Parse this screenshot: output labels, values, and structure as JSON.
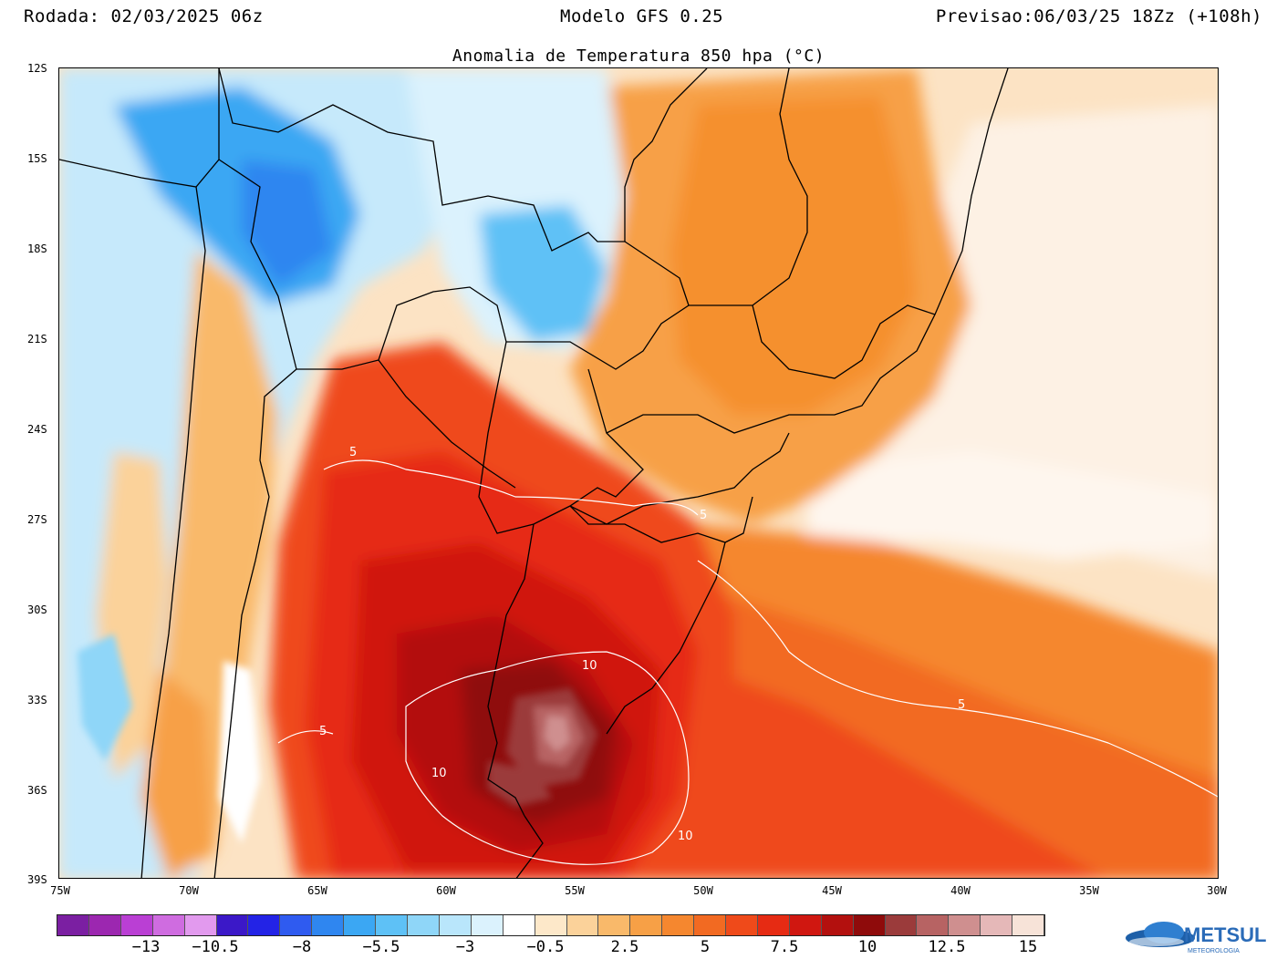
{
  "header": {
    "run": "Rodada: 02/03/2025 06z",
    "model": "Modelo GFS 0.25",
    "forecast": "Previsao:06/03/25 18Zz (+108h)",
    "title": "Anomalia de Temperatura 850 hpa (°C)"
  },
  "axes": {
    "lat_labels": [
      "12S",
      "15S",
      "18S",
      "21S",
      "24S",
      "27S",
      "30S",
      "33S",
      "36S",
      "39S"
    ],
    "lon_labels": [
      "75W",
      "70W",
      "65W",
      "60W",
      "55W",
      "50W",
      "45W",
      "40W",
      "35W",
      "30W"
    ]
  },
  "contour_labels": {
    "c5_a": "5",
    "c5_b": "5",
    "c5_c": "5",
    "c5_d": "5",
    "c10_a": "10",
    "c10_b": "10",
    "c10_c": "10"
  },
  "colorbar": {
    "labels": [
      "−13",
      "−10.5",
      "−8",
      "−5.5",
      "−3",
      "−0.5",
      "2.5",
      "5",
      "7.5",
      "10",
      "12.5",
      "15"
    ],
    "colors": [
      "#7b1fa2",
      "#9c27b0",
      "#ba3fd4",
      "#cf6ce0",
      "#e29aee",
      "#3b18c8",
      "#2323e6",
      "#2f5bf0",
      "#2f86f0",
      "#3ba7f3",
      "#5ec1f6",
      "#8fd6f8",
      "#b9e6fb",
      "#dbf2fd",
      "#ffffff",
      "#fde8c9",
      "#fbd29a",
      "#f9b96a",
      "#f7a046",
      "#f5872f",
      "#f26a22",
      "#ef4a1a",
      "#e62b13",
      "#d01710",
      "#b3100e",
      "#8f0b0b",
      "#9b3b3b",
      "#b76363",
      "#cf8f8f",
      "#e5b8b8",
      "#f7e3d8"
    ]
  },
  "logo": {
    "text": "METSUL",
    "subtext": "METEOROLOGIA"
  }
}
